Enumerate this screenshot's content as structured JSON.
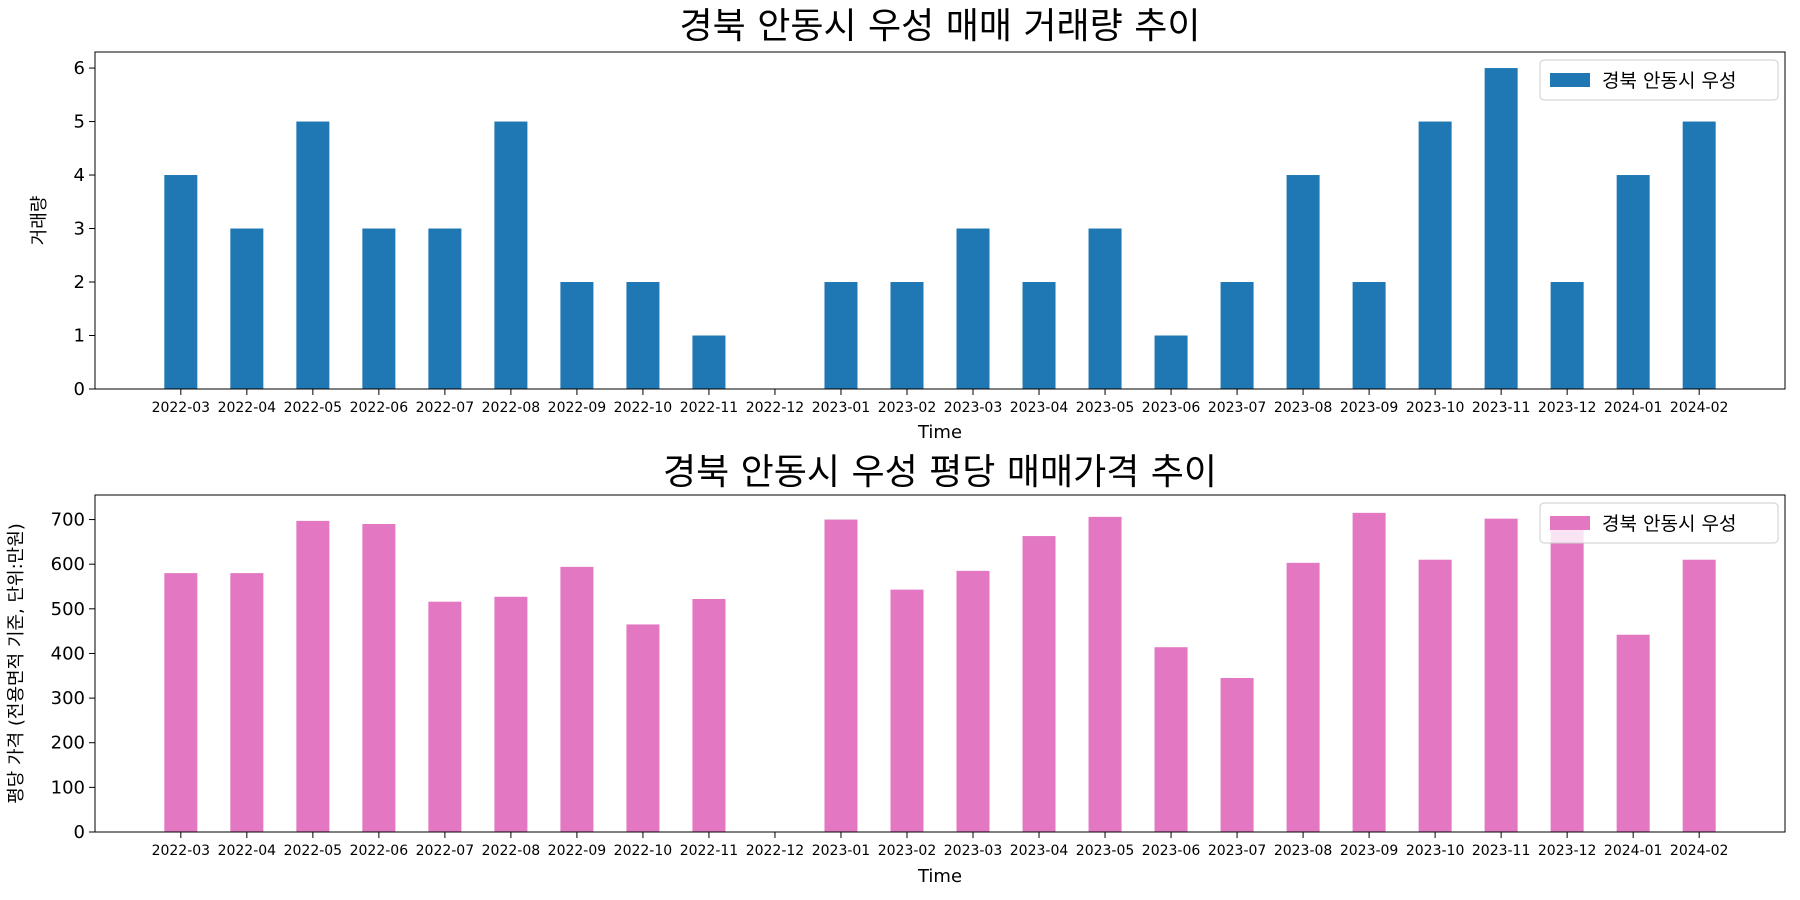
{
  "chart_data": [
    {
      "type": "bar",
      "title": "경북 안동시 우성 매매 거래량 추이",
      "xlabel": "Time",
      "ylabel": "거래량",
      "ylim": [
        0,
        6.3
      ],
      "yticks": [
        0,
        1,
        2,
        3,
        4,
        5,
        6
      ],
      "legend_position": "top-right",
      "categories": [
        "2022-03",
        "2022-04",
        "2022-05",
        "2022-06",
        "2022-07",
        "2022-08",
        "2022-09",
        "2022-10",
        "2022-11",
        "2022-12",
        "2023-01",
        "2023-02",
        "2023-03",
        "2023-04",
        "2023-05",
        "2023-06",
        "2023-07",
        "2023-08",
        "2023-09",
        "2023-10",
        "2023-11",
        "2023-12",
        "2024-01",
        "2024-02"
      ],
      "series": [
        {
          "name": "경북 안동시 우성",
          "color": "#1f77b4",
          "values": [
            4,
            3,
            5,
            3,
            3,
            5,
            2,
            2,
            1,
            0,
            2,
            2,
            3,
            2,
            3,
            1,
            2,
            4,
            2,
            5,
            6,
            2,
            4,
            5
          ]
        }
      ]
    },
    {
      "type": "bar",
      "title": "경북 안동시 우성 평당 매매가격 추이",
      "xlabel": "Time",
      "ylabel": "평당 가격 (전용면적 기준, 단위:만원)",
      "ylim": [
        0,
        755
      ],
      "yticks": [
        0,
        100,
        200,
        300,
        400,
        500,
        600,
        700
      ],
      "legend_position": "top-right",
      "categories": [
        "2022-03",
        "2022-04",
        "2022-05",
        "2022-06",
        "2022-07",
        "2022-08",
        "2022-09",
        "2022-10",
        "2022-11",
        "2022-12",
        "2023-01",
        "2023-02",
        "2023-03",
        "2023-04",
        "2023-05",
        "2023-06",
        "2023-07",
        "2023-08",
        "2023-09",
        "2023-10",
        "2023-11",
        "2023-12",
        "2024-01",
        "2024-02"
      ],
      "series": [
        {
          "name": "경북 안동시 우성",
          "color": "#e377c2",
          "values": [
            580,
            580,
            697,
            690,
            516,
            527,
            594,
            465,
            522,
            0,
            700,
            543,
            585,
            663,
            706,
            414,
            345,
            603,
            715,
            610,
            702,
            683,
            442,
            610
          ]
        }
      ]
    }
  ]
}
